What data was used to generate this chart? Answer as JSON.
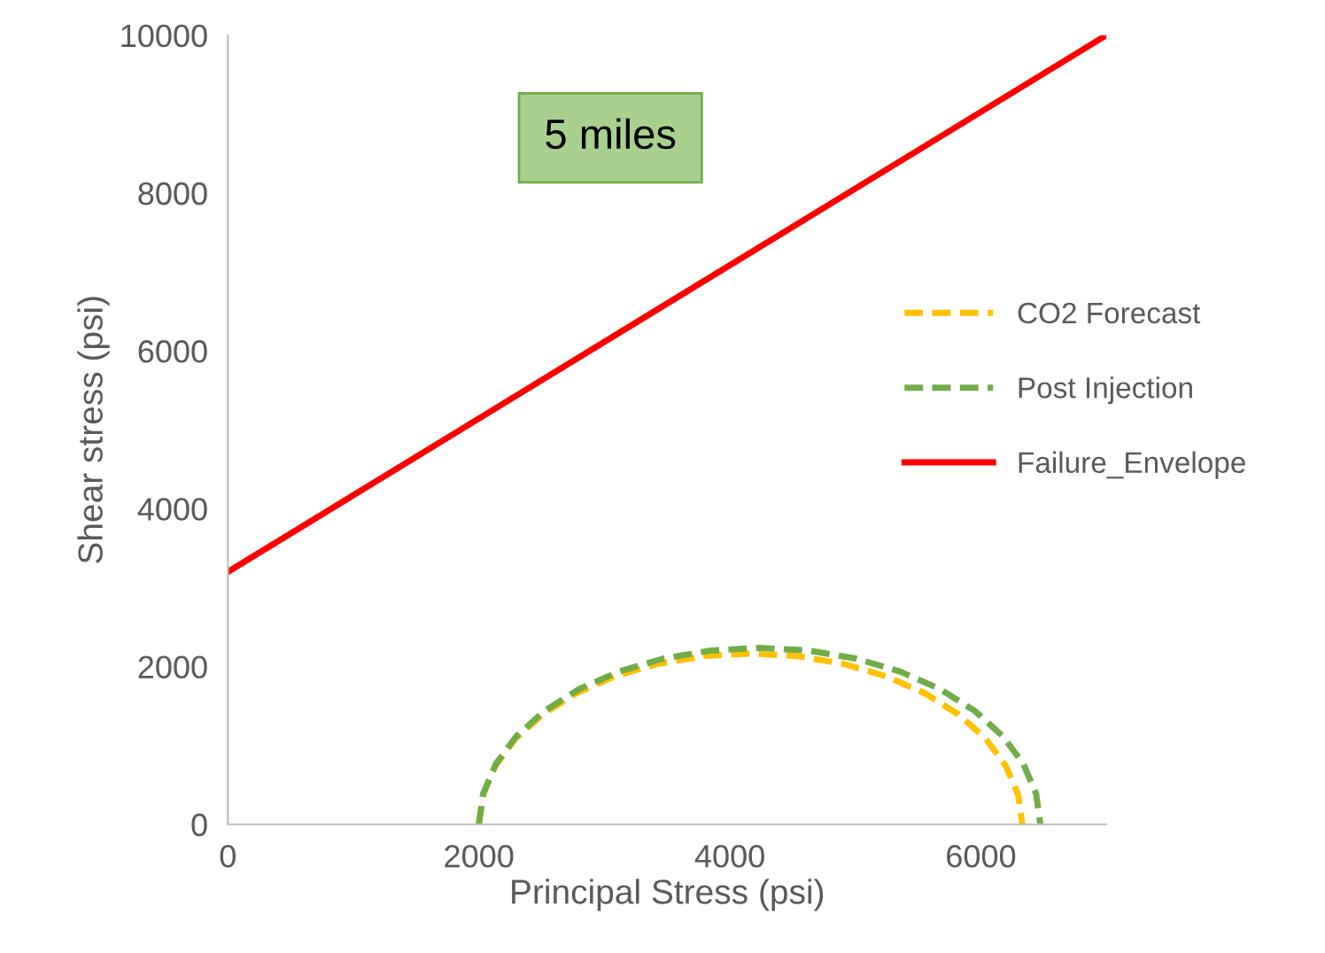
{
  "chart_data": {
    "type": "line",
    "xlabel": "Principal Stress (psi)",
    "ylabel": "Shear stress (psi)",
    "xlim": [
      0,
      7000
    ],
    "ylim": [
      0,
      10000
    ],
    "xticks": [
      0,
      2000,
      4000,
      6000
    ],
    "yticks": [
      0,
      2000,
      4000,
      6000,
      8000,
      10000
    ],
    "grid": false,
    "legend": "right",
    "annotations": [
      "5 miles"
    ],
    "series": [
      {
        "name": "CO2 Forecast",
        "color": "#ffc000",
        "line_style": "dashed",
        "x": [
          2000,
          2033,
          2131,
          2290,
          2507,
          2773,
          3082,
          3425,
          3789,
          4165,
          4541,
          4905,
          5248,
          5557,
          5823,
          6040,
          6199,
          6297,
          6330
        ],
        "values": [
          0,
          376,
          740,
          1083,
          1392,
          1658,
          1875,
          2034,
          2132,
          2165,
          2132,
          2034,
          1875,
          1658,
          1392,
          1083,
          740,
          376,
          0
        ]
      },
      {
        "name": "Post Injection",
        "color": "#70ad47",
        "line_style": "dashed",
        "x": [
          2000,
          2034,
          2135,
          2300,
          2523,
          2799,
          3118,
          3472,
          3849,
          4237,
          4625,
          5002,
          5356,
          5675,
          5951,
          6174,
          6339,
          6440,
          6474
        ],
        "values": [
          0,
          388,
          765,
          1119,
          1438,
          1714,
          1937,
          2102,
          2203,
          2237,
          2203,
          2102,
          1937,
          1714,
          1438,
          1119,
          765,
          388,
          0
        ]
      },
      {
        "name": "Failure_Envelope",
        "color": "#ff0000",
        "line_style": "solid",
        "x": [
          0,
          7000
        ],
        "values": [
          3200,
          10000
        ]
      }
    ]
  }
}
